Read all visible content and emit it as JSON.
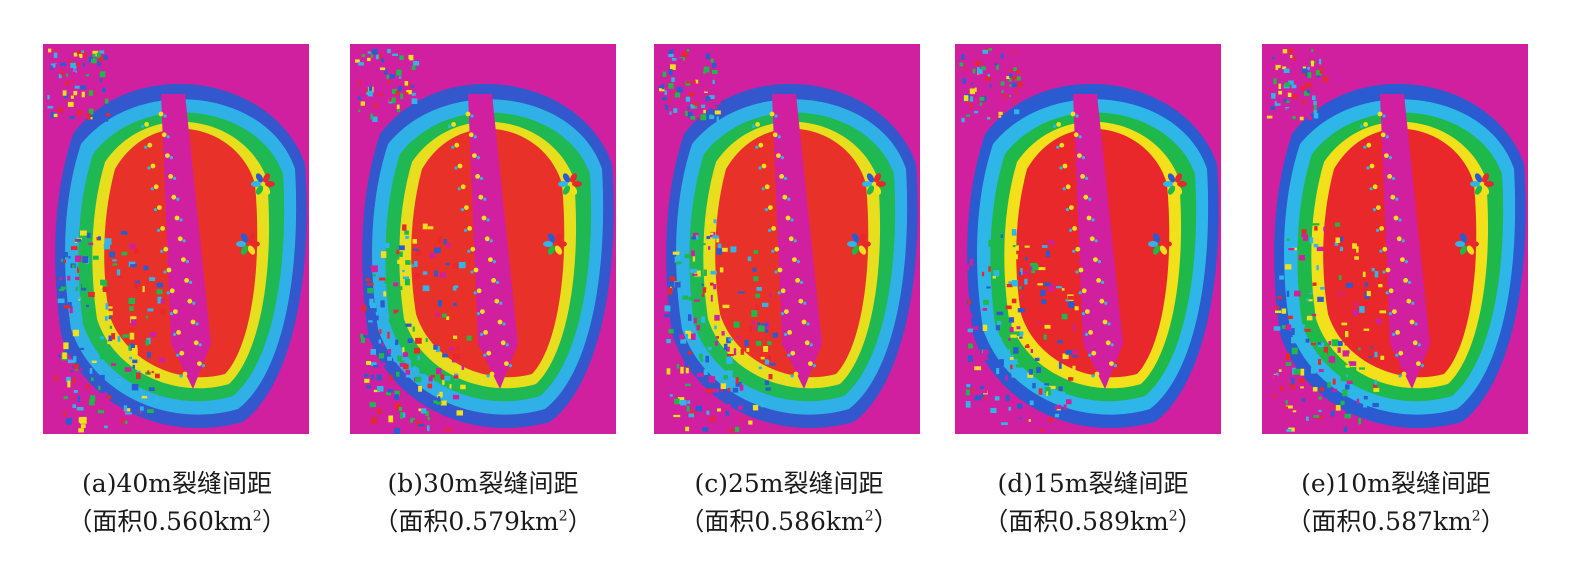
{
  "panels": [
    {
      "label": "(a)40m裂缝间距",
      "area_prefix": "（面积0.560km",
      "area_sup": "2",
      "area_suffix": "）"
    },
    {
      "label": "(b)30m裂缝间距",
      "area_prefix": "（面积0.579km",
      "area_sup": "2",
      "area_suffix": "）"
    },
    {
      "label": "(c)25m裂缝间距",
      "area_prefix": "（面积0.586km",
      "area_sup": "2",
      "area_suffix": "）"
    },
    {
      "label": "(d)15m裂缝间距",
      "area_prefix": "（面积0.589km",
      "area_sup": "2",
      "area_suffix": "）"
    },
    {
      "label": "(e)10m裂缝间距",
      "area_prefix": "（面积0.587km",
      "area_sup": "2",
      "area_suffix": "）"
    }
  ],
  "colors": {
    "background_field": "#d0209f",
    "red": "#e8282a",
    "yellow": "#f2e01a",
    "green": "#1fb84a",
    "cyan": "#2fb6e8",
    "blue": "#2a5bd0"
  }
}
